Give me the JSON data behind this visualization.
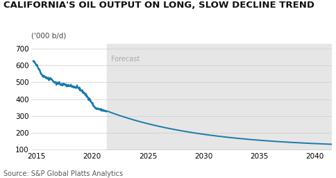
{
  "title": "CALIFORNIA'S OIL OUTPUT ON LONG, SLOW DECLINE TREND",
  "ylabel": "('000 b/d)",
  "source": "Source: S&P Global Platts Analytics",
  "forecast_label": "Forecast",
  "forecast_start_year": 2021.3,
  "xlim": [
    2014.5,
    2041.5
  ],
  "ylim": [
    95,
    730
  ],
  "yticks": [
    100,
    200,
    300,
    400,
    500,
    600,
    700
  ],
  "xticks": [
    2015,
    2020,
    2025,
    2030,
    2035,
    2040
  ],
  "line_color": "#1a7aab",
  "forecast_bg": "#e6e6e6",
  "historical_bg": "#ffffff",
  "title_fontsize": 9.5,
  "axis_fontsize": 7.5,
  "source_fontsize": 7.0,
  "ylabel_fontsize": 7.5
}
